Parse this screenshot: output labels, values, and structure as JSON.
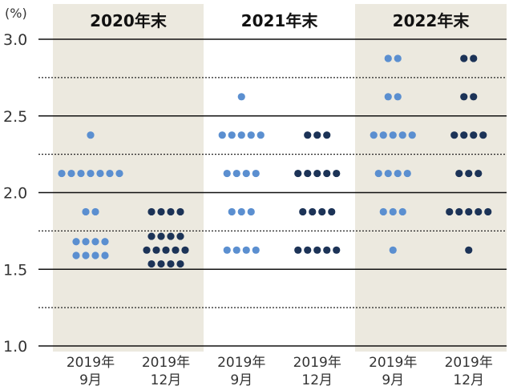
{
  "chart_data": {
    "type": "scatter",
    "unit": "(%)",
    "ylim": [
      1.0,
      3.0
    ],
    "y_ticks": [
      "1.0",
      "1.5",
      "2.0",
      "2.5",
      "3.0"
    ],
    "minor_gridlines": [
      1.25,
      1.75,
      2.25,
      2.75
    ],
    "groups": [
      {
        "title": "2020年末",
        "shaded": true,
        "categories": [
          {
            "label_line1": "2019年",
            "label_line2": "9月",
            "color": "#5b8fd0",
            "dots": [
              {
                "y": 2.375,
                "count": 1
              },
              {
                "y": 2.125,
                "count": 7
              },
              {
                "y": 1.875,
                "count": 2
              },
              {
                "y": 1.68,
                "count": 4
              },
              {
                "y": 1.59,
                "count": 4
              }
            ]
          },
          {
            "label_line1": "2019年",
            "label_line2": "12月",
            "color": "#1c3357",
            "dots": [
              {
                "y": 1.875,
                "count": 4
              },
              {
                "y": 1.715,
                "count": 4
              },
              {
                "y": 1.625,
                "count": 5
              },
              {
                "y": 1.535,
                "count": 4
              }
            ]
          }
        ]
      },
      {
        "title": "2021年末",
        "shaded": false,
        "categories": [
          {
            "label_line1": "2019年",
            "label_line2": "9月",
            "color": "#5b8fd0",
            "dots": [
              {
                "y": 2.625,
                "count": 1
              },
              {
                "y": 2.375,
                "count": 5
              },
              {
                "y": 2.125,
                "count": 4
              },
              {
                "y": 1.875,
                "count": 3
              },
              {
                "y": 1.625,
                "count": 4
              }
            ]
          },
          {
            "label_line1": "2019年",
            "label_line2": "12月",
            "color": "#1c3357",
            "dots": [
              {
                "y": 2.375,
                "count": 3
              },
              {
                "y": 2.125,
                "count": 5
              },
              {
                "y": 1.875,
                "count": 4
              },
              {
                "y": 1.625,
                "count": 5
              }
            ]
          }
        ]
      },
      {
        "title": "2022年末",
        "shaded": true,
        "categories": [
          {
            "label_line1": "2019年",
            "label_line2": "9月",
            "color": "#5b8fd0",
            "dots": [
              {
                "y": 2.875,
                "count": 2
              },
              {
                "y": 2.625,
                "count": 2
              },
              {
                "y": 2.375,
                "count": 5
              },
              {
                "y": 2.125,
                "count": 4
              },
              {
                "y": 1.875,
                "count": 3
              },
              {
                "y": 1.625,
                "count": 1
              }
            ]
          },
          {
            "label_line1": "2019年",
            "label_line2": "12月",
            "color": "#1c3357",
            "dots": [
              {
                "y": 2.875,
                "count": 2
              },
              {
                "y": 2.625,
                "count": 2
              },
              {
                "y": 2.375,
                "count": 4
              },
              {
                "y": 2.125,
                "count": 3
              },
              {
                "y": 1.875,
                "count": 5
              },
              {
                "y": 1.625,
                "count": 1
              }
            ]
          }
        ]
      }
    ],
    "colors": {
      "shade": "#ece9df",
      "light_dot": "#5b8fd0",
      "dark_dot": "#1c3357",
      "major_grid": "#111111",
      "minor_grid": "#222222"
    }
  }
}
